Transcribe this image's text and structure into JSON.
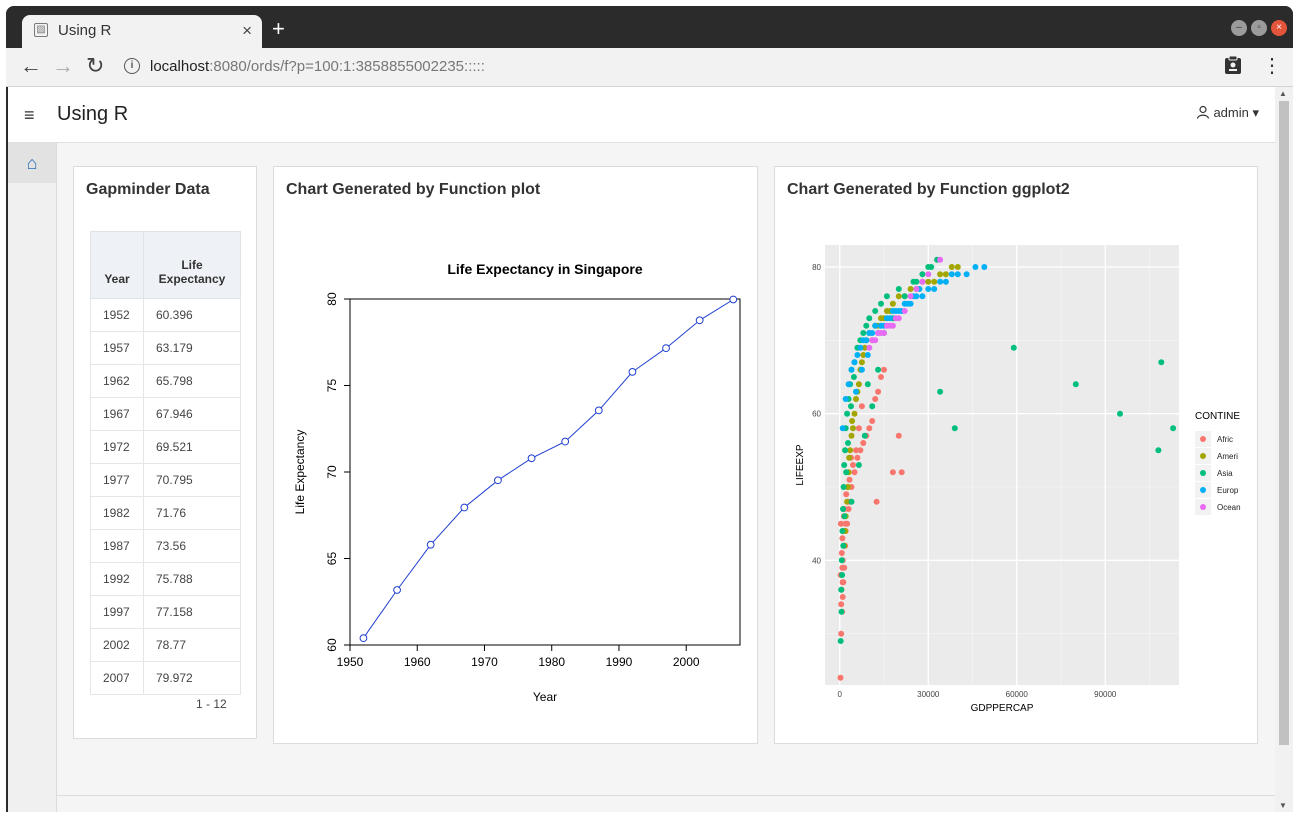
{
  "browser": {
    "tab_title": "Using R",
    "tab_close": "×",
    "new_tab": "+",
    "url_host": "localhost",
    "url_rest": ":8080/ords/f?p=100:1:3858855002235:::::",
    "back": "←",
    "forward": "→",
    "reload": "↻",
    "info_icon": "i",
    "clipboard_icon": "clipboard-icon",
    "menu_icon": "⋮"
  },
  "app": {
    "title": "Using R",
    "menu_icon": "≡",
    "user": "admin ▾",
    "home_icon": "⌂"
  },
  "table_card": {
    "title": "Gapminder Data",
    "columns": [
      "Year",
      "Life Expectancy"
    ],
    "rows": [
      [
        "1952",
        "60.396"
      ],
      [
        "1957",
        "63.179"
      ],
      [
        "1962",
        "65.798"
      ],
      [
        "1967",
        "67.946"
      ],
      [
        "1972",
        "69.521"
      ],
      [
        "1977",
        "70.795"
      ],
      [
        "1982",
        "71.76"
      ],
      [
        "1987",
        "73.56"
      ],
      [
        "1992",
        "75.788"
      ],
      [
        "1997",
        "77.158"
      ],
      [
        "2002",
        "78.77"
      ],
      [
        "2007",
        "79.972"
      ]
    ],
    "pager": "1 - 12"
  },
  "plot_card": {
    "title": "Chart Generated by Function plot"
  },
  "ggplot_card": {
    "title": "Chart Generated by Function ggplot2"
  },
  "chart_data": [
    {
      "type": "line",
      "title": "Life Expectancy in Singapore",
      "xlabel": "Year",
      "ylabel": "Life Expectancy",
      "x": [
        1952,
        1957,
        1962,
        1967,
        1972,
        1977,
        1982,
        1987,
        1992,
        1997,
        2002,
        2007
      ],
      "y": [
        60.396,
        63.179,
        65.798,
        67.946,
        69.521,
        70.795,
        71.76,
        73.56,
        75.788,
        77.158,
        78.77,
        79.972
      ],
      "xlim": [
        1950,
        2008
      ],
      "ylim": [
        60,
        80
      ],
      "xticks": [
        1950,
        1960,
        1970,
        1980,
        1990,
        2000
      ],
      "yticks": [
        60,
        65,
        70,
        75,
        80
      ],
      "color": "#1f3fd0"
    },
    {
      "type": "scatter",
      "xlabel": "GDPPERCAP",
      "ylabel": "LIFEEXP",
      "xlim": [
        -5000,
        115000
      ],
      "ylim": [
        23,
        83
      ],
      "xticks": [
        0,
        30000,
        60000,
        90000
      ],
      "yticks": [
        40,
        60,
        80
      ],
      "grid": true,
      "legend_position": "right",
      "legend_title": "CONTINE",
      "series": [
        {
          "name": "Africa",
          "color": "#f8766d",
          "x": [
            241,
            500,
            800,
            1000,
            1200,
            1500,
            1800,
            2000,
            2500,
            3000,
            3500,
            4000,
            5000,
            6000,
            7000,
            8000,
            9000,
            10000,
            11000,
            12000,
            13000,
            14000,
            15000,
            18000,
            21000,
            20000,
            12500,
            1000,
            600,
            900,
            1400,
            2200,
            3300,
            4500,
            5500,
            7500,
            300,
            700,
            1100,
            1600,
            2600,
            3800,
            6500,
            500,
            850,
            1300,
            1900,
            2800,
            400,
            950
          ],
          "y": [
            24,
            30,
            33,
            35,
            37,
            39,
            42,
            44,
            45,
            47,
            48,
            50,
            52,
            54,
            55,
            56,
            57,
            58,
            59,
            62,
            63,
            65,
            66,
            52,
            52,
            57,
            48,
            40,
            36,
            43,
            46,
            49,
            51,
            53,
            55,
            61,
            38,
            41,
            44,
            47,
            50,
            54,
            58,
            34,
            39,
            42,
            45,
            48,
            45,
            37
          ]
        },
        {
          "name": "Americas",
          "color": "#a3a500",
          "x": [
            1500,
            2000,
            2500,
            3000,
            3500,
            4000,
            5000,
            6000,
            7000,
            8000,
            9000,
            10000,
            12000,
            14000,
            16000,
            18000,
            20000,
            24000,
            28000,
            32000,
            36000,
            40000,
            1800,
            2800,
            4500,
            5500,
            6500,
            7500,
            11000,
            13000,
            15000,
            17000,
            22000,
            26000,
            30000,
            34000,
            38000,
            3200,
            4200,
            8500
          ],
          "y": [
            42,
            46,
            48,
            52,
            55,
            57,
            60,
            63,
            66,
            68,
            70,
            71,
            72,
            73,
            74,
            75,
            76,
            77,
            78,
            78,
            79,
            80,
            44,
            50,
            58,
            62,
            64,
            67,
            70,
            72,
            73,
            74,
            76,
            77,
            78,
            79,
            80,
            54,
            59,
            69
          ]
        },
        {
          "name": "Asia",
          "color": "#00bf7d",
          "x": [
            331,
            500,
            700,
            900,
            1100,
            1300,
            1500,
            1800,
            2000,
            2500,
            3000,
            3500,
            4000,
            5000,
            6000,
            7000,
            8000,
            9000,
            10000,
            12000,
            14000,
            16000,
            20000,
            25000,
            30000,
            33000,
            34000,
            39000,
            59000,
            80000,
            95000,
            108000,
            109000,
            113000,
            600,
            800,
            1200,
            1600,
            2200,
            2800,
            3800,
            4800,
            8500,
            11000,
            15000,
            18000,
            22000,
            26000,
            28000,
            31000,
            4000,
            6500,
            9500,
            13000
          ],
          "y": [
            29,
            36,
            40,
            44,
            47,
            50,
            53,
            55,
            58,
            60,
            62,
            64,
            66,
            67,
            69,
            70,
            71,
            72,
            73,
            74,
            75,
            76,
            77,
            78,
            80,
            81,
            63,
            58,
            69,
            64,
            60,
            55,
            67,
            58,
            33,
            38,
            42,
            46,
            52,
            56,
            61,
            65,
            57,
            61,
            71,
            73,
            76,
            78,
            79,
            80,
            48,
            53,
            64,
            66
          ]
        },
        {
          "name": "Europe",
          "color": "#00b0f6",
          "x": [
            1000,
            2000,
            3000,
            4000,
            5000,
            6000,
            7000,
            8000,
            9000,
            10000,
            11000,
            12000,
            14000,
            16000,
            18000,
            20000,
            22000,
            24000,
            26000,
            28000,
            30000,
            32000,
            34000,
            36000,
            38000,
            40000,
            43000,
            46000,
            49000,
            5500,
            7500,
            9500,
            13000,
            15000,
            17000,
            19000,
            21000,
            23000,
            25000,
            27000
          ],
          "y": [
            58,
            62,
            64,
            66,
            67,
            68,
            69,
            70,
            70,
            71,
            71,
            72,
            72,
            73,
            74,
            74,
            75,
            75,
            76,
            76,
            77,
            77,
            78,
            78,
            79,
            79,
            79,
            80,
            80,
            63,
            66,
            68,
            71,
            72,
            73,
            74,
            74,
            75,
            76,
            77
          ]
        },
        {
          "name": "Oceania",
          "color": "#e76bf3",
          "x": [
            10000,
            11000,
            12000,
            13000,
            14000,
            15000,
            16000,
            17000,
            18000,
            19000,
            20000,
            22000,
            24000,
            26000,
            28000,
            30000,
            34000
          ],
          "y": [
            69,
            70,
            70,
            71,
            71,
            71,
            72,
            72,
            72,
            73,
            73,
            74,
            76,
            77,
            78,
            79,
            81
          ]
        }
      ]
    }
  ]
}
